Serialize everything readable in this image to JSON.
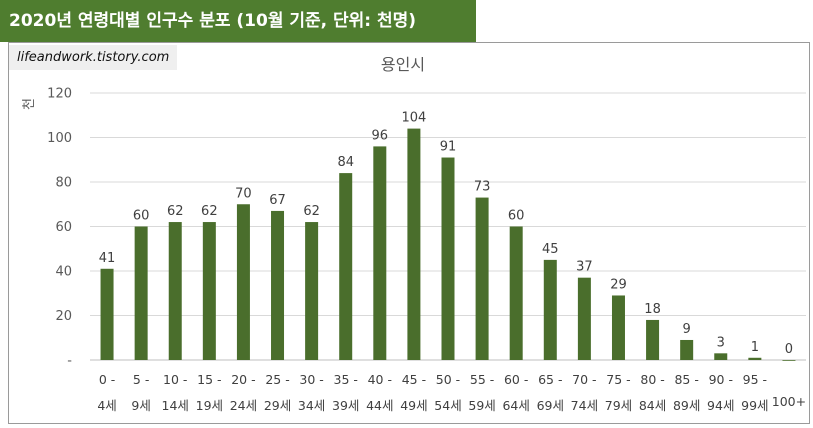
{
  "header": {
    "title": "2020년 연령대별 인구수 분포 (10월 기준, 단위: 천명)",
    "watermark": "lifeandwork.tistory.com"
  },
  "colors": {
    "banner": "#4f7d2f",
    "bar": "#4a6e2c",
    "grid": "#d9d9d9"
  },
  "chart_data": {
    "type": "bar",
    "title": "용인시",
    "ylabel": "천",
    "xlabel": "",
    "ylim": [
      0,
      120
    ],
    "yticks": [
      "-",
      "20",
      "40",
      "60",
      "80",
      "100",
      "120"
    ],
    "grid": true,
    "categories": [
      [
        "0 -",
        "4세"
      ],
      [
        "5 -",
        "9세"
      ],
      [
        "10 -",
        "14세"
      ],
      [
        "15 -",
        "19세"
      ],
      [
        "20 -",
        "24세"
      ],
      [
        "25 -",
        "29세"
      ],
      [
        "30 -",
        "34세"
      ],
      [
        "35 -",
        "39세"
      ],
      [
        "40 -",
        "44세"
      ],
      [
        "45 -",
        "49세"
      ],
      [
        "50 -",
        "54세"
      ],
      [
        "55 -",
        "59세"
      ],
      [
        "60 -",
        "64세"
      ],
      [
        "65 -",
        "69세"
      ],
      [
        "70 -",
        "74세"
      ],
      [
        "75 -",
        "79세"
      ],
      [
        "80 -",
        "84세"
      ],
      [
        "85 -",
        "89세"
      ],
      [
        "90 -",
        "94세"
      ],
      [
        "95 -",
        "99세"
      ],
      [
        "",
        "100+"
      ]
    ],
    "values": [
      41,
      60,
      62,
      62,
      70,
      67,
      62,
      84,
      96,
      104,
      91,
      73,
      60,
      45,
      37,
      29,
      18,
      9,
      3,
      1,
      0
    ]
  }
}
